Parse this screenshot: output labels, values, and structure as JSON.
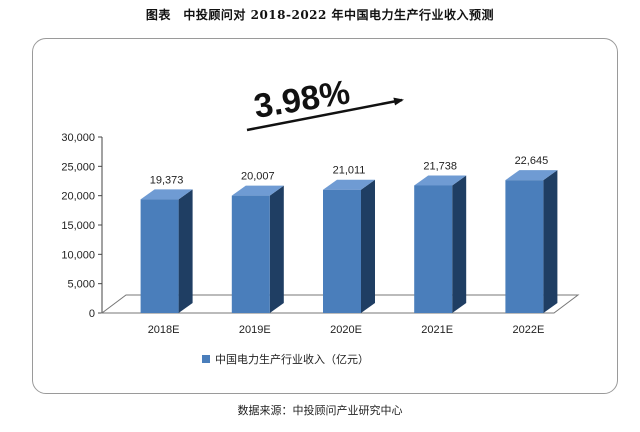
{
  "header": {
    "title": "图表　中投顾问对 2018-2022 年中国电力生产行业收入预测"
  },
  "footer": {
    "source": "数据来源：中投顾问产业研究中心"
  },
  "chart_data": {
    "type": "bar",
    "categories": [
      "2018E",
      "2019E",
      "2020E",
      "2021E",
      "2022E"
    ],
    "series": [
      {
        "name": "中国电力生产行业收入（亿元）",
        "values": [
          19373,
          20007,
          21011,
          21738,
          22645
        ]
      }
    ],
    "data_labels": [
      "19,373",
      "20,007",
      "21,011",
      "21,738",
      "22,645"
    ],
    "y_ticks": [
      "0",
      "5,000",
      "10,000",
      "15,000",
      "20,000",
      "25,000",
      "30,000"
    ],
    "ylim": [
      0,
      30000
    ],
    "annotation": "3.98%",
    "legend_position": "bottom",
    "grid": false,
    "colors": {
      "bar_front": "#4a7ebb",
      "bar_side": "#1f3e63",
      "bar_top": "#6f9bd3",
      "floor": "#ffffff"
    }
  }
}
